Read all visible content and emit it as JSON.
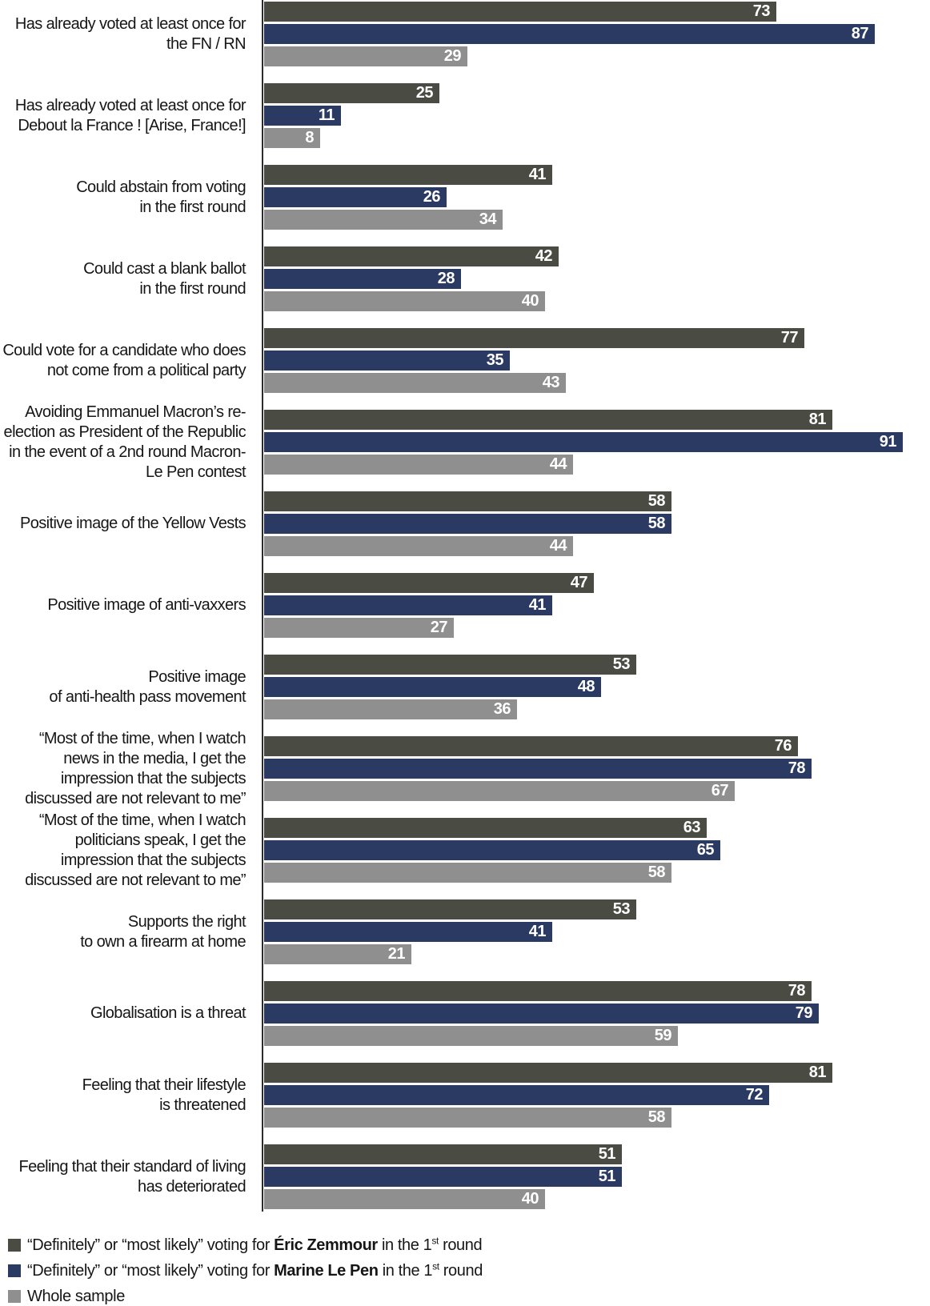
{
  "colors": {
    "zemmour": "#4a4b42",
    "lepen": "#2b3a63",
    "whole_sample": "#8f8f8f",
    "axis": "#2b2b2b",
    "value_label": "#ffffff",
    "text": "#161616"
  },
  "chart_data": {
    "type": "bar",
    "orientation": "horizontal",
    "value_unit": "percent",
    "axis_range": [
      0,
      100
    ],
    "grid": false,
    "legend_position": "bottom-left",
    "categories": [
      "Has already voted at least once for\nthe FN / RN",
      "Has already voted at least once for\nDebout la France ! [Arise, France!]",
      "Could abstain from voting\nin the first round",
      "Could cast a blank ballot\nin the first round",
      "Could vote for a candidate who does\nnot come from a political party",
      "Avoiding Emmanuel Macron’s re-\nelection as President of the Republic\nin the event of a 2nd round Macron-\nLe Pen contest",
      "Positive image of the Yellow Vests",
      "Positive image of anti-vaxxers",
      "Positive image\nof anti-health pass movement",
      "“Most of the time, when I watch\nnews in the media, I get the\nimpression that the subjects\ndiscussed are not relevant to me”",
      "“Most of the time, when I watch\npoliticians speak, I get the\nimpression that the subjects\ndiscussed are not relevant to me”",
      "Supports the right\nto own a firearm at home",
      "Globalisation is a threat",
      "Feeling that their lifestyle\nis threatened",
      "Feeling that their standard of living\nhas deteriorated"
    ],
    "series": [
      {
        "name": "“Definitely” or “most likely” voting for Éric Zemmour in the 1st round",
        "color_key": "zemmour",
        "values": [
          73,
          25,
          41,
          42,
          77,
          81,
          58,
          47,
          53,
          76,
          63,
          53,
          78,
          81,
          51
        ]
      },
      {
        "name": "“Definitely” or “most likely” voting for Marine Le Pen in the 1st round",
        "color_key": "lepen",
        "values": [
          87,
          11,
          26,
          28,
          35,
          91,
          58,
          41,
          48,
          78,
          65,
          41,
          79,
          72,
          51
        ]
      },
      {
        "name": "Whole sample",
        "color_key": "whole_sample",
        "values": [
          29,
          8,
          34,
          40,
          43,
          44,
          44,
          27,
          36,
          67,
          58,
          21,
          59,
          58,
          40
        ]
      }
    ]
  },
  "legend": {
    "items": [
      {
        "color_key": "zemmour",
        "segments": [
          {
            "text": "“Definitely” or “most likely” voting for "
          },
          {
            "text": "Éric Zemmour",
            "bold": true
          },
          {
            "text": " in the 1"
          },
          {
            "text": "st",
            "sup": true
          },
          {
            "text": " round"
          }
        ]
      },
      {
        "color_key": "lepen",
        "segments": [
          {
            "text": "“Definitely” or “most likely” voting for "
          },
          {
            "text": "Marine Le Pen",
            "bold": true
          },
          {
            "text": " in the 1"
          },
          {
            "text": "st",
            "sup": true
          },
          {
            "text": " round"
          }
        ]
      },
      {
        "color_key": "whole_sample",
        "segments": [
          {
            "text": "Whole sample"
          }
        ]
      }
    ]
  }
}
